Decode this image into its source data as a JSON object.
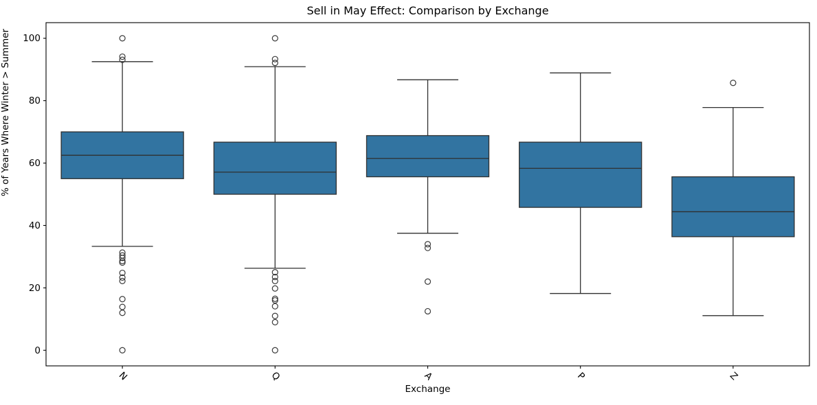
{
  "chart_data": {
    "type": "boxplot",
    "title": "Sell in May Effect: Comparison by Exchange",
    "xlabel": "Exchange",
    "ylabel": "% of Years Where Winter > Summer",
    "categories": [
      "N",
      "Q",
      "A",
      "P",
      "Z"
    ],
    "ylim": [
      -5,
      105
    ],
    "yticks": [
      0,
      20,
      40,
      60,
      80,
      100
    ],
    "grid": false,
    "legend": "none",
    "colors": {
      "box_fill": "#3274a1",
      "box_edge": "#2f2f2f",
      "whisker": "#2f2f2f",
      "flier_edge": "#3a3a3a",
      "axis": "#000000",
      "background": "#ffffff"
    },
    "boxes": [
      {
        "label": "N",
        "whisker_low": 33.3,
        "q1": 55.0,
        "median": 62.5,
        "q3": 70.0,
        "whisker_high": 92.5,
        "outliers": [
          100.0,
          94.1,
          93.1,
          31.3,
          30.4,
          29.6,
          28.6,
          28.1,
          24.8,
          23.3,
          22.2,
          16.4,
          13.9,
          12.0,
          0.0
        ]
      },
      {
        "label": "Q",
        "whisker_low": 26.3,
        "q1": 50.0,
        "median": 57.1,
        "q3": 66.7,
        "whisker_high": 90.9,
        "outliers": [
          100.0,
          93.3,
          92.1,
          25.0,
          23.5,
          22.2,
          19.8,
          16.5,
          16.0,
          14.1,
          11.0,
          9.0,
          0.0
        ]
      },
      {
        "label": "A",
        "whisker_low": 37.5,
        "q1": 55.6,
        "median": 61.5,
        "q3": 68.8,
        "whisker_high": 86.7,
        "outliers": [
          34.0,
          32.8,
          22.0,
          12.5
        ]
      },
      {
        "label": "P",
        "whisker_low": 18.2,
        "q1": 45.8,
        "median": 58.3,
        "q3": 66.7,
        "whisker_high": 88.9,
        "outliers": []
      },
      {
        "label": "Z",
        "whisker_low": 11.1,
        "q1": 36.4,
        "median": 44.4,
        "q3": 55.6,
        "whisker_high": 77.8,
        "outliers": [
          85.7
        ]
      }
    ]
  }
}
